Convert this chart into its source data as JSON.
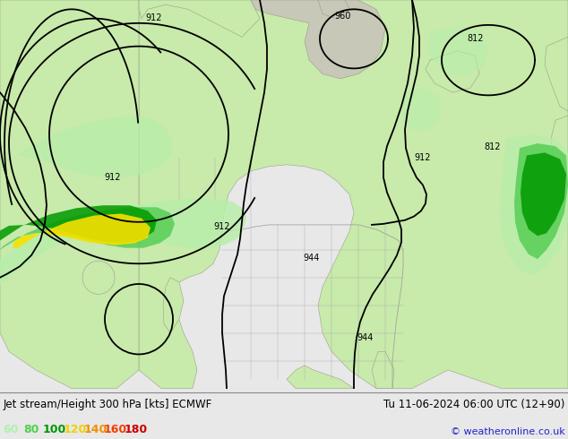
{
  "title_left": "Jet stream/Height 300 hPa [kts] ECMWF",
  "title_right": "Tu 11-06-2024 06:00 UTC (12+90)",
  "copyright": "© weatheronline.co.uk",
  "legend_values": [
    "60",
    "80",
    "100",
    "120",
    "140",
    "160",
    "180"
  ],
  "legend_colors": [
    "#b0f0b0",
    "#50d050",
    "#009900",
    "#f0d000",
    "#f09000",
    "#f04000",
    "#cc0000"
  ],
  "bg_color": "#e8e8e8",
  "land_color": "#c8eaaa",
  "land_color2": "#d8f0b8",
  "ocean_color": "#e8e8e8",
  "figsize": [
    6.34,
    4.9
  ],
  "dpi": 100,
  "title_fontsize": 8.5,
  "legend_fontsize": 9
}
